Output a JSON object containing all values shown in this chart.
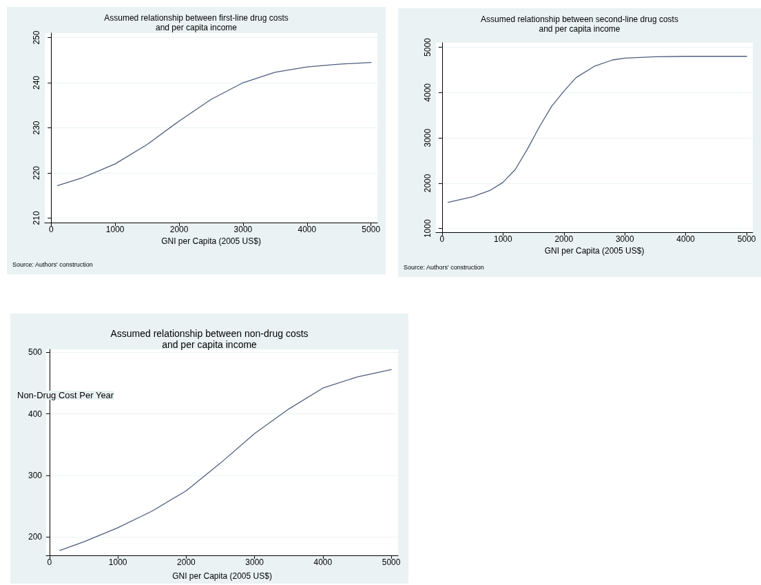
{
  "chart_data": [
    {
      "type": "line",
      "title": "Assumed relationship between first-line drug costs\nand per capita income",
      "xlabel": "GNI per Capita (2005 US$)",
      "annotations": [
        "Source: Authors' construction"
      ],
      "series": [
        {
          "color": "#4d5d7c",
          "x": [
            100,
            500,
            1000,
            1500,
            2000,
            2500,
            3000,
            3500,
            4000,
            4500,
            5000
          ],
          "values": [
            217.2,
            219,
            222,
            226.3,
            231.5,
            236.3,
            240,
            242.3,
            243.5,
            244.1,
            244.5
          ]
        }
      ],
      "xlim": [
        -100,
        5100
      ],
      "xticks": [
        0,
        1000,
        2000,
        3000,
        4000,
        5000
      ],
      "ylim": [
        209,
        251
      ],
      "yticks": [
        210,
        220,
        230,
        240,
        250
      ],
      "grid": "y",
      "marker": "none",
      "line_style": "solid"
    },
    {
      "type": "line",
      "title": "Assumed relationship between second-line drug costs\nand per capita income",
      "xlabel": "GNI per Capita (2005 US$)",
      "annotations": [
        "Source: Authors' construction"
      ],
      "series": [
        {
          "color": "#4d5d7c",
          "x": [
            100,
            500,
            800,
            1000,
            1200,
            1400,
            1600,
            1800,
            2000,
            2200,
            2500,
            2800,
            3000,
            3500,
            4000,
            5000
          ],
          "values": [
            1580,
            1700,
            1850,
            2020,
            2300,
            2750,
            3250,
            3700,
            4030,
            4330,
            4580,
            4720,
            4760,
            4790,
            4800,
            4800
          ]
        }
      ],
      "xlim": [
        -100,
        5100
      ],
      "xticks": [
        0,
        1000,
        2000,
        3000,
        4000,
        5000
      ],
      "ylim": [
        920,
        5100
      ],
      "yticks": [
        1000,
        2000,
        3000,
        4000,
        5000
      ],
      "grid": "y",
      "marker": "none",
      "line_style": "solid"
    },
    {
      "type": "line",
      "title": "Assumed relationship between non-drug costs\nand per capita income",
      "xlabel": "GNI per Capita (2005 US$)",
      "ylabel": "Non-Drug Cost Per Year",
      "series": [
        {
          "color": "#4d5d7c",
          "x": [
            150,
            500,
            1000,
            1500,
            2000,
            2500,
            3000,
            3500,
            4000,
            4500,
            5000
          ],
          "values": [
            178,
            192,
            215,
            242,
            275,
            320,
            368,
            408,
            442,
            460,
            472
          ]
        }
      ],
      "xlim": [
        -50,
        5100
      ],
      "xticks": [
        0,
        1000,
        2000,
        3000,
        4000,
        5000
      ],
      "ylim": [
        170,
        505
      ],
      "yticks": [
        200,
        300,
        400,
        500
      ],
      "grid": "y",
      "marker": "none",
      "line_style": "solid"
    }
  ]
}
